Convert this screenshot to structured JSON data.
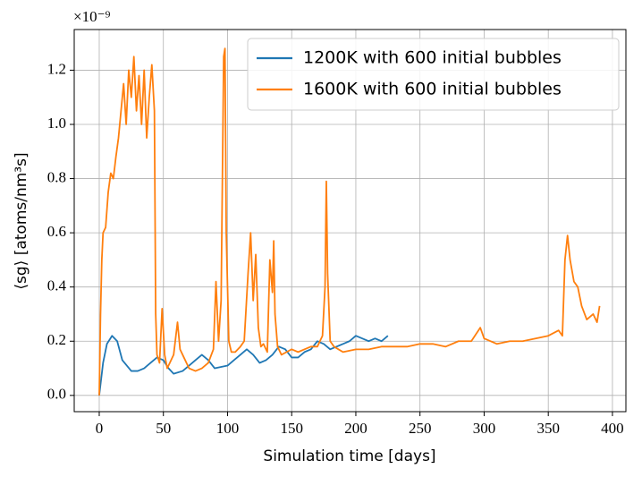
{
  "chart_data": {
    "type": "line",
    "xlabel": "Simulation time [days]",
    "ylabel": "⟨sg⟩ [atoms/nm³s]",
    "offset_text": "×10⁻⁹",
    "xlim": [
      -19.5,
      410.5
    ],
    "ylim": [
      -0.06,
      1.35
    ],
    "xticks": [
      0,
      50,
      100,
      150,
      200,
      250,
      300,
      350,
      400
    ],
    "yticks": [
      {
        "value": 0,
        "label": "0.0"
      },
      {
        "value": 0.2,
        "label": "0.2"
      },
      {
        "value": 0.4,
        "label": "0.4"
      },
      {
        "value": 0.6,
        "label": "0.6"
      },
      {
        "value": 0.8,
        "label": "0.8"
      },
      {
        "value": 1.0,
        "label": "1.0"
      },
      {
        "value": 1.2,
        "label": "1.2"
      }
    ],
    "grid": true,
    "legend": "upper right",
    "series": [
      {
        "name": "1200K with 600 initial bubbles",
        "color": "#1f77b4",
        "x": [
          0,
          3,
          6,
          10,
          14,
          18,
          25,
          30,
          35,
          40,
          45,
          50,
          54,
          58,
          65,
          70,
          75,
          80,
          85,
          90,
          100,
          105,
          110,
          115,
          120,
          125,
          130,
          135,
          140,
          145,
          150,
          155,
          160,
          165,
          170,
          175,
          180,
          185,
          190,
          195,
          200,
          205,
          210,
          215,
          220,
          225
        ],
        "values": [
          0,
          0.12,
          0.19,
          0.22,
          0.2,
          0.13,
          0.09,
          0.09,
          0.1,
          0.12,
          0.14,
          0.13,
          0.1,
          0.08,
          0.09,
          0.11,
          0.13,
          0.15,
          0.13,
          0.1,
          0.11,
          0.13,
          0.15,
          0.17,
          0.15,
          0.12,
          0.13,
          0.15,
          0.18,
          0.17,
          0.14,
          0.14,
          0.16,
          0.17,
          0.2,
          0.19,
          0.17,
          0.18,
          0.19,
          0.2,
          0.22,
          0.21,
          0.2,
          0.21,
          0.2,
          0.22
        ]
      },
      {
        "name": "1600K with 600 initial bubbles",
        "color": "#ff7f0e",
        "x": [
          0,
          1,
          2,
          3,
          5,
          7,
          9,
          11,
          13,
          15,
          17,
          19,
          21,
          23,
          25,
          27,
          29,
          31,
          33,
          35,
          37,
          39,
          41,
          43,
          44,
          45,
          47,
          49,
          51,
          53,
          55,
          58,
          61,
          63,
          66,
          70,
          75,
          80,
          85,
          89,
          91,
          93,
          95,
          97,
          98,
          99,
          100,
          101,
          103,
          106,
          110,
          113,
          116,
          118,
          120,
          122,
          124,
          126,
          128,
          131,
          133,
          135,
          136,
          137,
          139,
          142,
          146,
          150,
          155,
          160,
          165,
          170,
          174,
          176,
          177,
          178,
          180,
          183,
          190,
          200,
          210,
          220,
          230,
          240,
          250,
          260,
          270,
          280,
          290,
          297,
          300,
          310,
          320,
          330,
          340,
          350,
          358,
          361,
          363,
          365,
          367,
          370,
          373,
          376,
          380,
          385,
          388,
          390
        ],
        "values": [
          0,
          0.3,
          0.5,
          0.6,
          0.62,
          0.75,
          0.82,
          0.8,
          0.88,
          0.95,
          1.05,
          1.15,
          1.0,
          1.2,
          1.1,
          1.25,
          1.05,
          1.18,
          1.0,
          1.2,
          0.95,
          1.1,
          1.22,
          1.05,
          0.3,
          0.15,
          0.12,
          0.32,
          0.15,
          0.1,
          0.12,
          0.15,
          0.27,
          0.17,
          0.14,
          0.1,
          0.09,
          0.1,
          0.12,
          0.17,
          0.42,
          0.2,
          0.35,
          1.25,
          1.28,
          0.6,
          0.4,
          0.2,
          0.16,
          0.16,
          0.18,
          0.2,
          0.45,
          0.6,
          0.35,
          0.52,
          0.25,
          0.18,
          0.19,
          0.16,
          0.5,
          0.38,
          0.57,
          0.3,
          0.18,
          0.15,
          0.16,
          0.17,
          0.16,
          0.17,
          0.18,
          0.18,
          0.22,
          0.4,
          0.79,
          0.45,
          0.2,
          0.18,
          0.16,
          0.17,
          0.17,
          0.18,
          0.18,
          0.18,
          0.19,
          0.19,
          0.18,
          0.2,
          0.2,
          0.25,
          0.21,
          0.19,
          0.2,
          0.2,
          0.21,
          0.22,
          0.24,
          0.22,
          0.5,
          0.59,
          0.5,
          0.42,
          0.4,
          0.33,
          0.28,
          0.3,
          0.27,
          0.33
        ]
      }
    ]
  }
}
